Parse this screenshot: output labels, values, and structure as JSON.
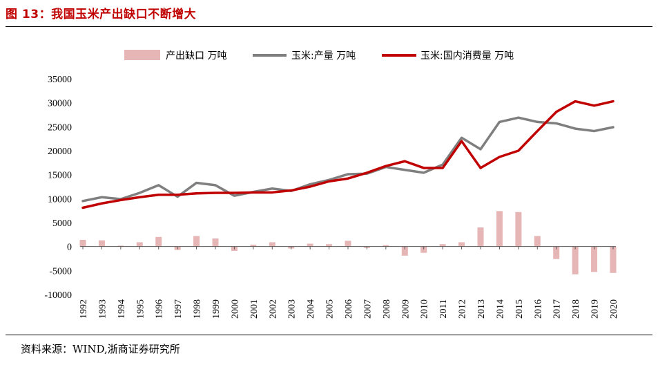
{
  "figure": {
    "title": "图 13：我国玉米产出缺口不断增大",
    "source": "资料来源：WIND,浙商证券研究所"
  },
  "colors": {
    "title": "#c00000",
    "gap_bar": "#e6b5b5",
    "production_line": "#7f7f7f",
    "consumption_line": "#c00000"
  },
  "chart_data": {
    "type": "bar+line",
    "title": "我国玉米产出缺口不断增大",
    "categories": [
      "1992",
      "1993",
      "1994",
      "1995",
      "1996",
      "1997",
      "1998",
      "1999",
      "2000",
      "2001",
      "2002",
      "2003",
      "2004",
      "2005",
      "2006",
      "2007",
      "2008",
      "2009",
      "2010",
      "2011",
      "2012",
      "2013",
      "2014",
      "2015",
      "2016",
      "2017",
      "2018",
      "2019",
      "2020"
    ],
    "series": [
      {
        "name": "产出缺口 万吨",
        "type": "bar",
        "values": [
          1400,
          1300,
          200,
          900,
          2000,
          -700,
          2200,
          1700,
          -900,
          400,
          900,
          -400,
          600,
          500,
          1200,
          -300,
          300,
          -1900,
          -1300,
          500,
          900,
          4000,
          7400,
          7200,
          2200,
          -2600,
          -5800,
          -5300,
          -5500
        ]
      },
      {
        "name": "玉米:产量 万吨",
        "type": "line",
        "values": [
          9500,
          10300,
          9900,
          11200,
          12800,
          10400,
          13300,
          12800,
          10600,
          11400,
          12100,
          11600,
          13000,
          13900,
          15100,
          15200,
          16600,
          16000,
          15400,
          17100,
          22700,
          20300,
          26000,
          26900,
          26000,
          25700,
          24600,
          24100,
          24900
        ]
      },
      {
        "name": "玉米:国内消费量 万吨",
        "type": "line",
        "values": [
          8100,
          9000,
          9700,
          10300,
          10800,
          10800,
          11100,
          11200,
          11200,
          11300,
          11300,
          11700,
          12500,
          13600,
          14200,
          15400,
          16800,
          17800,
          16400,
          16400,
          22000,
          16400,
          18700,
          20000,
          24100,
          28100,
          30300,
          29400,
          30300
        ]
      }
    ],
    "y_ticks": [
      "35000",
      "30000",
      "25000",
      "20000",
      "15000",
      "10000",
      "5000",
      "0",
      "-5000",
      "-10000"
    ],
    "ylim": [
      -10000,
      35000
    ],
    "grid": false,
    "legend_position": "top"
  }
}
